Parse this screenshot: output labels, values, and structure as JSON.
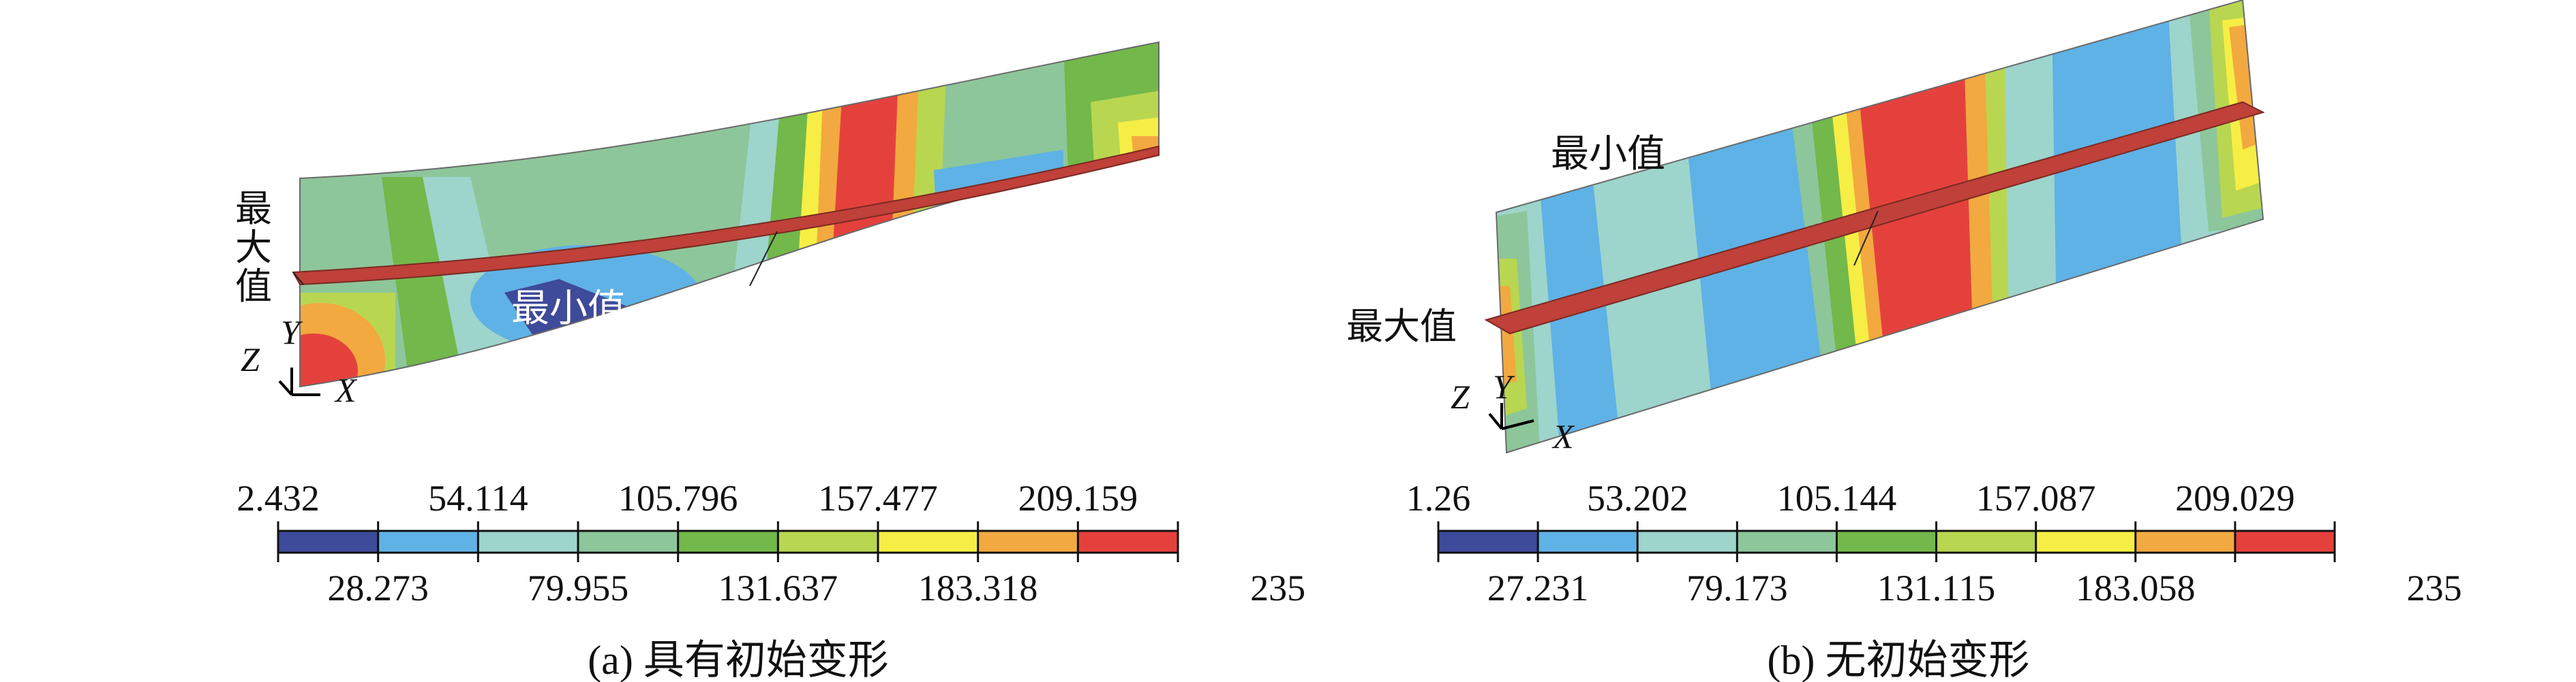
{
  "colors": {
    "band_0": "#3e4a9a",
    "band_1": "#5fb2e6",
    "band_2": "#9dd4cc",
    "band_3": "#8dc69a",
    "band_4": "#73b84a",
    "band_5": "#b9d651",
    "band_6": "#f6ee45",
    "band_7": "#f2a93f",
    "band_8": "#e5413c"
  },
  "panel_a": {
    "caption": "(a) 具有初始变形",
    "max_label": "最大值",
    "min_label": "最小值",
    "axes": {
      "x": "X",
      "y": "Y",
      "z": "Z"
    },
    "legend_top": [
      "2.432",
      "54.114",
      "105.796",
      "157.477",
      "209.159"
    ],
    "legend_bottom": [
      "28.273",
      "79.955",
      "131.637",
      "183.318",
      "235"
    ]
  },
  "panel_b": {
    "caption": "(b) 无初始变形",
    "max_label": "最大值",
    "min_label": "最小值",
    "axes": {
      "x": "X",
      "y": "Y",
      "z": "Z"
    },
    "legend_top": [
      "1.26",
      "53.202",
      "105.144",
      "157.087",
      "209.029"
    ],
    "legend_bottom": [
      "27.231",
      "79.173",
      "131.115",
      "183.058",
      "235"
    ]
  }
}
